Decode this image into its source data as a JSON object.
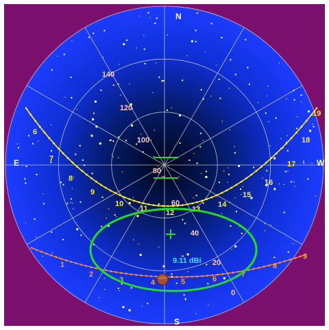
{
  "compass": {
    "north": "N",
    "south": "S",
    "east": "E",
    "west": "W"
  },
  "elevation_labels": [
    "0",
    "20",
    "40",
    "60",
    "80",
    "100",
    "120",
    "140"
  ],
  "sun_track": {
    "hour_labels": [
      "6",
      "7",
      "8",
      "9",
      "10",
      "11",
      "12",
      "13",
      "14",
      "15",
      "16",
      "17",
      "18",
      "19"
    ]
  },
  "lower_track": {
    "hour_labels": [
      "1",
      "2",
      "3",
      "4",
      "5",
      "6",
      "7",
      "8",
      "9"
    ]
  },
  "beam": {
    "gain_label": "9.11 dBi"
  },
  "colors": {
    "background": "#7a0f6e",
    "sky_edge": "#1c3cff",
    "sky_center": "#00051a",
    "grid": "#d8d8d8",
    "sun_track": "#ffee22",
    "lower_track": "#ff8c3a",
    "beam": "#22dd22",
    "gain_text": "#40e0ff",
    "elevation_text": "#ffc8c8",
    "compass_text": "#ffffff"
  }
}
